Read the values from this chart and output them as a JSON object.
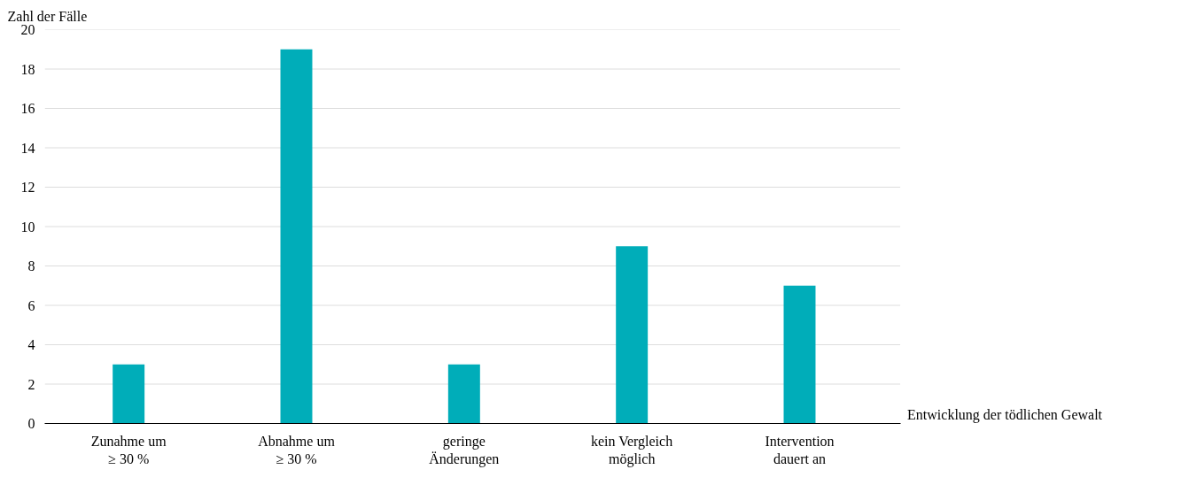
{
  "chart_data": {
    "type": "bar",
    "ylabel": "Zahl der Fälle",
    "xlabel": "Entwicklung der tödlichen Gewalt",
    "categories": [
      "Zunahme um\n≥ 30 %",
      "Abnahme um\n≥ 30 %",
      "geringe\nÄnderungen",
      "kein Vergleich\nmöglich",
      "Intervention\ndauert an"
    ],
    "values": [
      3,
      19,
      3,
      9,
      7
    ],
    "color": "#00adb9",
    "ylim": [
      0,
      20
    ],
    "yticks": [
      0,
      2,
      4,
      6,
      8,
      10,
      12,
      14,
      16,
      18,
      20
    ],
    "grid": "y",
    "legend": false
  }
}
